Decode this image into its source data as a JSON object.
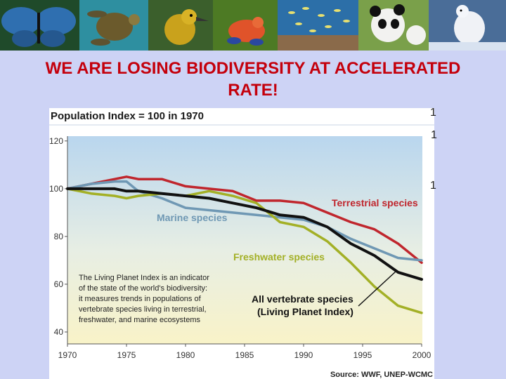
{
  "page": {
    "headline_line1": "WE ARE LOSING BIODIVERSITY AT ACCELERATED",
    "headline_line2": "RATE!",
    "headline_color": "#c4000c",
    "background_color": "#cdd3f5"
  },
  "banner": {
    "images": [
      {
        "name": "butterfly-photo",
        "color": "#2f6fb0"
      },
      {
        "name": "sea-turtle-photo",
        "color": "#2e8fa0"
      },
      {
        "name": "bird-photo",
        "color": "#c9a21c"
      },
      {
        "name": "poison-frog-photo",
        "color": "#e0532a"
      },
      {
        "name": "coral-reef-fish-photo",
        "color": "#2c6fa8"
      },
      {
        "name": "giant-panda-photo",
        "color": "#7aa04a"
      },
      {
        "name": "polar-bear-photo",
        "color": "#4a6d98"
      }
    ]
  },
  "chart_data": {
    "type": "line",
    "title": "Population Index = 100 in 1970",
    "source": "Source: WWF, UNEP-WCMC",
    "x": [
      1970,
      1972,
      1974,
      1975,
      1976,
      1978,
      1980,
      1982,
      1984,
      1986,
      1988,
      1990,
      1992,
      1994,
      1996,
      1998,
      2000
    ],
    "xticks": [
      "1970",
      "1975",
      "1980",
      "1985",
      "1990",
      "1995",
      "2000"
    ],
    "yticks": [
      "40",
      "60",
      "80",
      "100",
      "120"
    ],
    "xlim": [
      1970,
      2000
    ],
    "ylim": [
      35,
      122
    ],
    "series": [
      {
        "name": "Terrestrial species",
        "color": "#c0262d",
        "values": [
          100,
          102,
          104,
          105,
          104,
          104,
          101,
          100,
          99,
          95,
          95,
          94,
          90,
          86,
          83,
          77,
          69
        ]
      },
      {
        "name": "Marine species",
        "color": "#6f98b4",
        "values": [
          100,
          102,
          103,
          103,
          99,
          96,
          92,
          91,
          90,
          89,
          88,
          87,
          84,
          79,
          75,
          71,
          70
        ]
      },
      {
        "name": "Freshwater species",
        "color": "#a3b026",
        "values": [
          100,
          98,
          97,
          96,
          97,
          98,
          97,
          99,
          97,
          94,
          86,
          84,
          78,
          69,
          59,
          51,
          48
        ]
      },
      {
        "name": "All vertebrate species (Living Planet Index)",
        "color": "#111111",
        "values": [
          100,
          100,
          100,
          99,
          99,
          98,
          97,
          96,
          94,
          92,
          89,
          88,
          84,
          77,
          72,
          65,
          62
        ]
      }
    ],
    "series_labels": {
      "terrestrial": "Terrestrial species",
      "marine": "Marine species",
      "freshwater": "Freshwater species",
      "all_line1": "All vertebrate species",
      "all_line2": "(Living Planet Index)"
    },
    "annotation_lines": [
      "The Living Planet Index is an indicator",
      "of the state of the world's biodiversity:",
      "it measures trends in populations of",
      "vertebrate species living in terrestrial,",
      "freshwater, and marine ecosystems"
    ]
  },
  "edge_ticks": {
    "right_1": "1",
    "right_2": "1",
    "right_3": "1"
  }
}
